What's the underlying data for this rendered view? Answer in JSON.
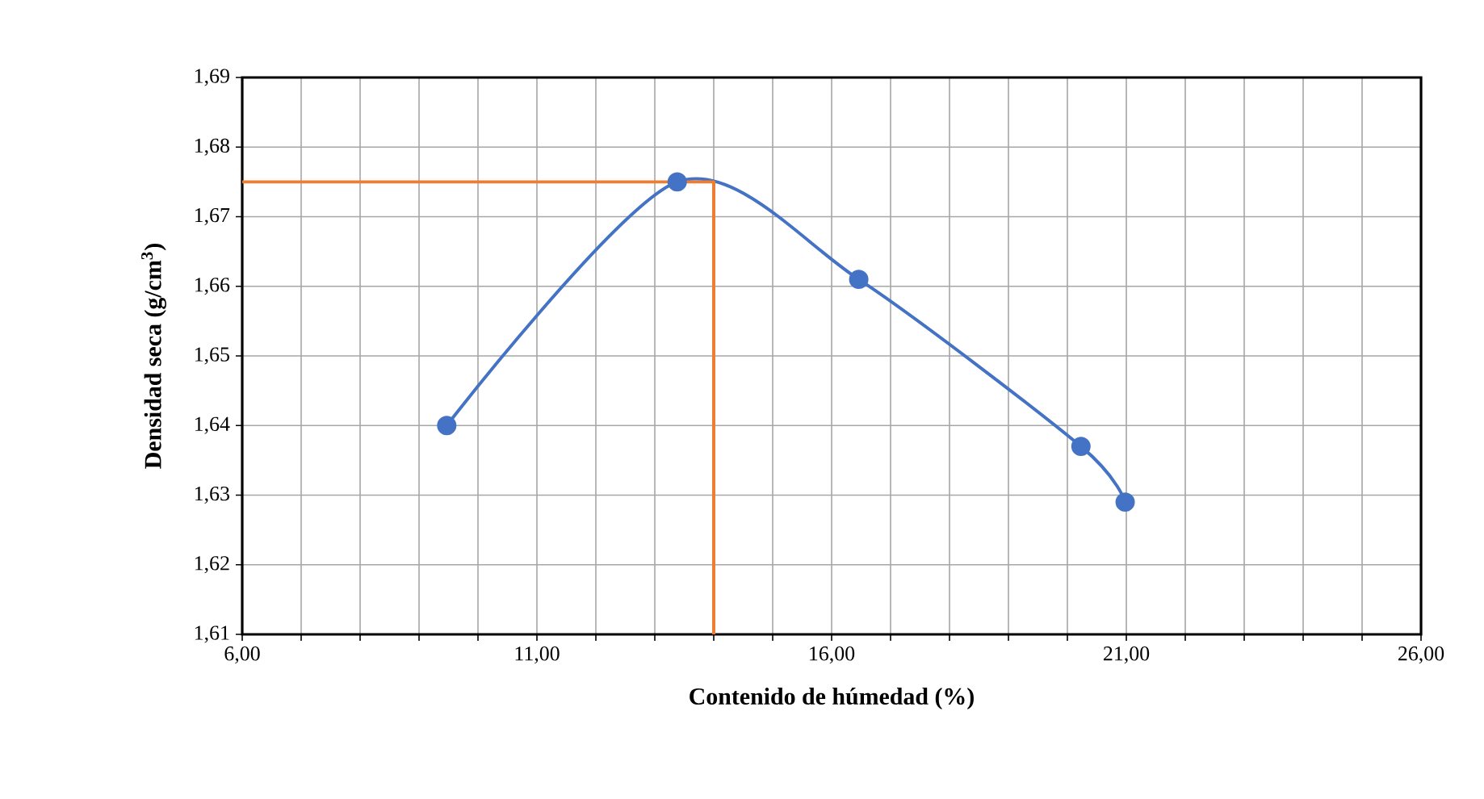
{
  "chart_data": {
    "type": "line",
    "xlabel": "Contenido de húmedad (%)",
    "ylabel": "Densidad seca (g/cm$^{3}$)",
    "series": [
      {
        "color": "#4472c4",
        "marker": "circle",
        "x": [
          9.47,
          13.38,
          16.46,
          20.23,
          20.98
        ],
        "values": [
          1.64,
          1.675,
          1.661,
          1.637,
          1.629
        ]
      },
      {
        "color": "#ed7d31",
        "marker": "none",
        "x": [
          6,
          14.0,
          14.0
        ],
        "values": [
          1.675,
          1.675,
          1.61
        ]
      }
    ],
    "xlim": [
      6,
      26
    ],
    "xticks": [
      {
        "value": 6,
        "label": "6,00"
      },
      {
        "value": 7,
        "label": null
      },
      {
        "value": 8,
        "label": null
      },
      {
        "value": 9,
        "label": null
      },
      {
        "value": 10,
        "label": null
      },
      {
        "value": 11,
        "label": "11,00"
      },
      {
        "value": 12,
        "label": null
      },
      {
        "value": 13,
        "label": null
      },
      {
        "value": 14,
        "label": null
      },
      {
        "value": 15,
        "label": null
      },
      {
        "value": 16,
        "label": "16,00"
      },
      {
        "value": 17,
        "label": null
      },
      {
        "value": 18,
        "label": null
      },
      {
        "value": 19,
        "label": null
      },
      {
        "value": 20,
        "label": null
      },
      {
        "value": 21,
        "label": "21,00"
      },
      {
        "value": 22,
        "label": null
      },
      {
        "value": 23,
        "label": null
      },
      {
        "value": 24,
        "label": null
      },
      {
        "value": 25,
        "label": null
      },
      {
        "value": 26,
        "label": "26,00"
      }
    ],
    "ylim": [
      1.61,
      1.69
    ],
    "yticks": [
      {
        "value": 1.61,
        "label": "1,61"
      },
      {
        "value": 1.62,
        "label": "1,62"
      },
      {
        "value": 1.63,
        "label": "1,63"
      },
      {
        "value": 1.64,
        "label": "1,64"
      },
      {
        "value": 1.65,
        "label": "1,65"
      },
      {
        "value": 1.66,
        "label": "1,66"
      },
      {
        "value": 1.67,
        "label": "1,67"
      },
      {
        "value": 1.68,
        "label": "1,68"
      },
      {
        "value": 1.69,
        "label": "1,69"
      }
    ],
    "grid": true
  }
}
